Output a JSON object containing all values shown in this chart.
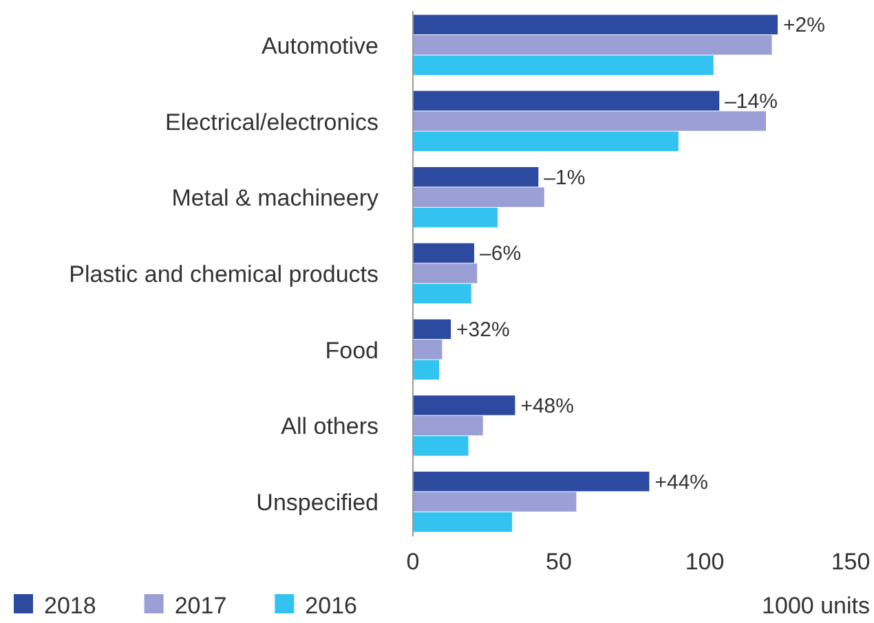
{
  "chart_data": {
    "type": "bar",
    "orientation": "horizontal",
    "categories": [
      "Automotive",
      "Electrical/electronics",
      "Metal & machineery",
      "Plastic and chemical products",
      "Food",
      "All others",
      "Unspecified"
    ],
    "series": [
      {
        "name": "2018",
        "color": "#2b4aa0",
        "values": [
          125,
          105,
          43,
          21,
          13,
          35,
          81
        ]
      },
      {
        "name": "2017",
        "color": "#9a9fd6",
        "values": [
          123,
          121,
          45,
          22,
          10,
          24,
          56
        ]
      },
      {
        "name": "2016",
        "color": "#33c3f0",
        "values": [
          103,
          91,
          29,
          20,
          9,
          19,
          34
        ]
      }
    ],
    "annotations": [
      "+2%",
      "–14%",
      "–1%",
      "–6%",
      "+32%",
      "+48%",
      "+44%"
    ],
    "xlim": [
      0,
      150
    ],
    "xticks": [
      0,
      50,
      100,
      150
    ],
    "xlabel": "1000 units",
    "legend": "bottom left",
    "grid": false
  }
}
